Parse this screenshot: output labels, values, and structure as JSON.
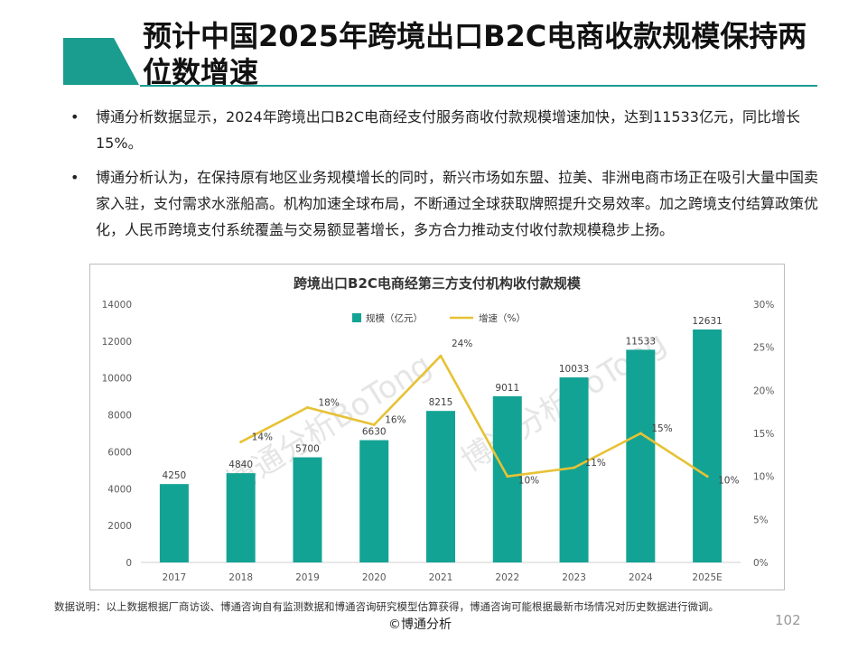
{
  "header": {
    "title": "预计中国2025年跨境出口B2C电商收款规模保持两位数增速",
    "accent_color": "#1a9c8f"
  },
  "bullets": [
    "博通分析数据显示，2024年跨境出口B2C电商经支付服务商收付款规模增速加快，达到11533亿元，同比增长15%。",
    "博通分析认为，在保持原有地区业务规模增长的同时，新兴市场如东盟、拉美、非洲电商市场正在吸引大量中国卖家入驻，支付需求水涨船高。机构加速全球布局，不断通过全球获取牌照提升交易效率。加之跨境支付结算政策优化，人民币跨境支付系统覆盖与交易额显著增长，多方合力推动支付收付款规模稳步上扬。"
  ],
  "bullet_symbol": "•",
  "chart_data": {
    "type": "bar",
    "title": "跨境出口B2C电商经第三方支付机构收付款规模",
    "categories": [
      "2017",
      "2018",
      "2019",
      "2020",
      "2021",
      "2022",
      "2023",
      "2024",
      "2025E"
    ],
    "series": [
      {
        "name": "规模（亿元）",
        "type": "bar",
        "axis": "left",
        "color": "#13a394",
        "values": [
          4250,
          4840,
          5700,
          6630,
          8215,
          9011,
          10033,
          11533,
          12631
        ],
        "labels": [
          "4250",
          "4840",
          "5700",
          "6630",
          "8215",
          "9011",
          "10033",
          "11533",
          "12631"
        ]
      },
      {
        "name": "增速（%）",
        "type": "line",
        "axis": "right",
        "color": "#e6c234",
        "values": [
          null,
          14,
          18,
          16,
          24,
          10,
          11,
          15,
          10
        ],
        "labels": [
          "",
          "14%",
          "18%",
          "16%",
          "24%",
          "10%",
          "11%",
          "15%",
          "10%"
        ]
      }
    ],
    "y_left": {
      "min": 0,
      "max": 14000,
      "ticks": [
        "0",
        "2000",
        "4000",
        "6000",
        "8000",
        "10000",
        "12000",
        "14000"
      ]
    },
    "y_right": {
      "min": 0,
      "max": 30,
      "ticks": [
        "0%",
        "5%",
        "10%",
        "15%",
        "20%",
        "25%",
        "30%"
      ]
    },
    "legend_position": "top",
    "watermark": "博通分析BoTong"
  },
  "footer": {
    "note": "数据说明：以上数据根据厂商访谈、博通咨询自有监测数据和博通咨询研究模型估算获得，博通咨询可能根据最新市场情况对历史数据进行微调。",
    "copyright": "©博通分析",
    "page_number": "102"
  }
}
